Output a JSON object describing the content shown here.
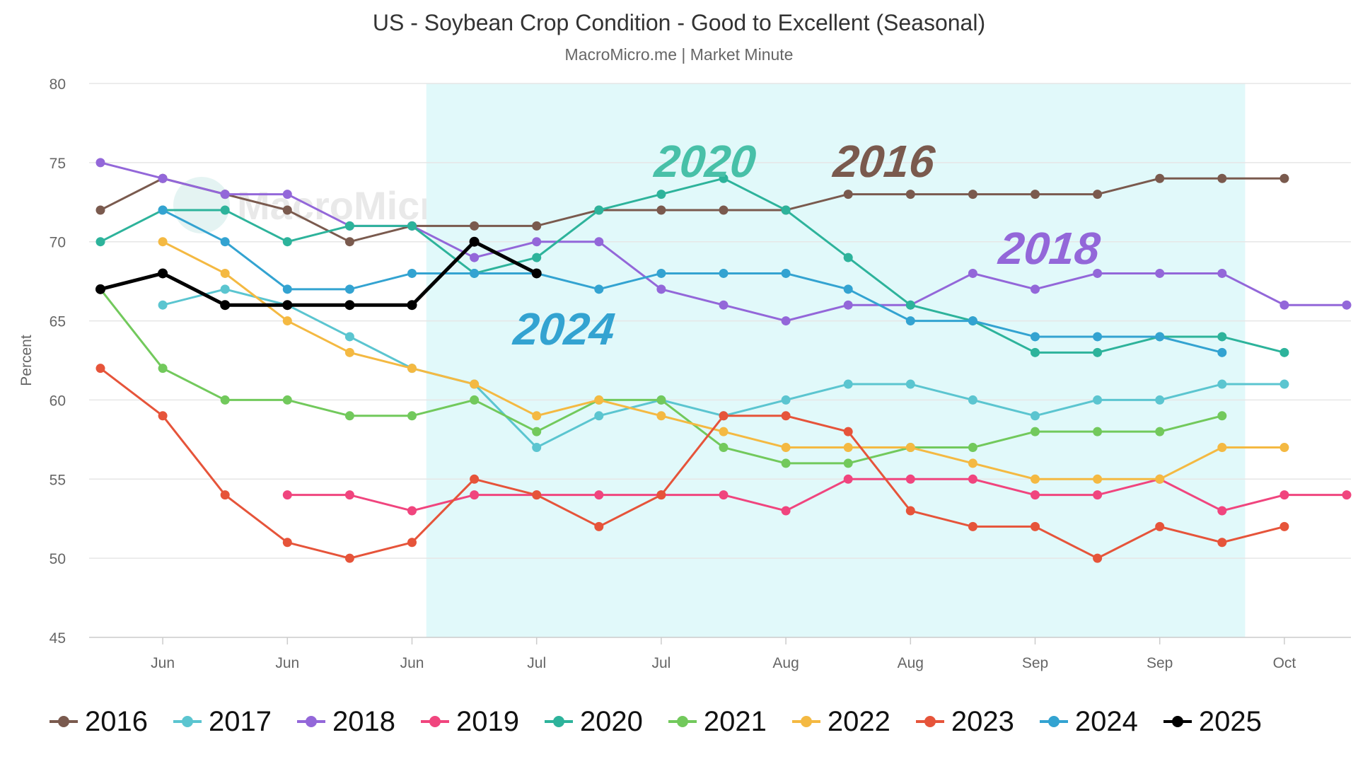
{
  "chart_data": {
    "type": "line",
    "title": "US - Soybean Crop Condition - Good to Excellent (Seasonal)",
    "subtitle": "MacroMicro.me | Market Minute",
    "watermark": "MacroMicro",
    "ylabel": "Percent",
    "ylim": [
      45,
      80
    ],
    "y_ticks": [
      45,
      50,
      55,
      60,
      65,
      70,
      75,
      80
    ],
    "grid": true,
    "x_count": 21,
    "x_ticks": [
      {
        "index": 1,
        "label": "Jun"
      },
      {
        "index": 3,
        "label": "Jun"
      },
      {
        "index": 5,
        "label": "Jun"
      },
      {
        "index": 7,
        "label": "Jul"
      },
      {
        "index": 9,
        "label": "Jul"
      },
      {
        "index": 11,
        "label": "Aug"
      },
      {
        "index": 13,
        "label": "Aug"
      },
      {
        "index": 15,
        "label": "Sep"
      },
      {
        "index": 17,
        "label": "Sep"
      },
      {
        "index": 19,
        "label": "Oct"
      }
    ],
    "highlight_band": {
      "from": 5.23,
      "to": 18.37,
      "color": "#e1f9fa"
    },
    "legend_position": "bottom",
    "annotations": [
      {
        "text": "2020",
        "x": 9.98,
        "y": 74.1,
        "color": "#48c0a8"
      },
      {
        "text": "2016",
        "x": 12.85,
        "y": 74.1,
        "color": "#7a5a4e"
      },
      {
        "text": "2018",
        "x": 15.65,
        "y": 68.6,
        "color": "#9367d9"
      },
      {
        "text": "2024",
        "x": 8.0,
        "y": 63.5,
        "color": "#33a3d1"
      }
    ],
    "series": [
      {
        "name": "2016",
        "color": "#7a5a4e",
        "values": [
          72,
          74,
          73,
          72,
          70,
          71,
          71,
          71,
          72,
          72,
          72,
          72,
          73,
          73,
          73,
          73,
          73,
          74,
          74,
          74,
          null
        ]
      },
      {
        "name": "2017",
        "color": "#5bc5d0",
        "values": [
          null,
          66,
          67,
          66,
          64,
          62,
          61,
          57,
          59,
          60,
          59,
          60,
          61,
          61,
          60,
          59,
          60,
          60,
          61,
          61,
          null
        ]
      },
      {
        "name": "2018",
        "color": "#9367d9",
        "values": [
          75,
          74,
          73,
          73,
          71,
          71,
          69,
          70,
          70,
          67,
          66,
          65,
          66,
          66,
          68,
          67,
          68,
          68,
          68,
          66,
          66
        ]
      },
      {
        "name": "2019",
        "color": "#f0457e",
        "values": [
          null,
          null,
          null,
          54,
          54,
          53,
          54,
          54,
          54,
          54,
          54,
          53,
          55,
          55,
          55,
          54,
          54,
          55,
          53,
          54,
          54
        ]
      },
      {
        "name": "2020",
        "color": "#2db39b",
        "values": [
          70,
          72,
          72,
          70,
          71,
          71,
          68,
          69,
          72,
          73,
          74,
          72,
          69,
          66,
          65,
          63,
          63,
          64,
          64,
          63,
          null
        ]
      },
      {
        "name": "2021",
        "color": "#72c95c",
        "values": [
          67,
          62,
          60,
          60,
          59,
          59,
          60,
          58,
          60,
          60,
          57,
          56,
          56,
          57,
          57,
          58,
          58,
          58,
          59,
          null,
          null
        ]
      },
      {
        "name": "2022",
        "color": "#f4b942",
        "values": [
          null,
          70,
          68,
          65,
          63,
          62,
          61,
          59,
          60,
          59,
          58,
          57,
          57,
          57,
          56,
          55,
          55,
          55,
          57,
          57,
          null
        ]
      },
      {
        "name": "2023",
        "color": "#e6543a",
        "values": [
          62,
          59,
          54,
          51,
          50,
          51,
          55,
          54,
          52,
          54,
          59,
          59,
          58,
          53,
          52,
          52,
          50,
          52,
          51,
          52,
          null
        ]
      },
      {
        "name": "2024",
        "color": "#33a3d1",
        "values": [
          null,
          72,
          70,
          67,
          67,
          68,
          68,
          68,
          67,
          68,
          68,
          68,
          67,
          65,
          65,
          64,
          64,
          64,
          63,
          null,
          null
        ]
      },
      {
        "name": "2025",
        "color": "#000000",
        "values": [
          67,
          68,
          66,
          66,
          66,
          66,
          70,
          68,
          null,
          null,
          null,
          null,
          null,
          null,
          null,
          null,
          null,
          null,
          null,
          null,
          null
        ]
      }
    ]
  }
}
